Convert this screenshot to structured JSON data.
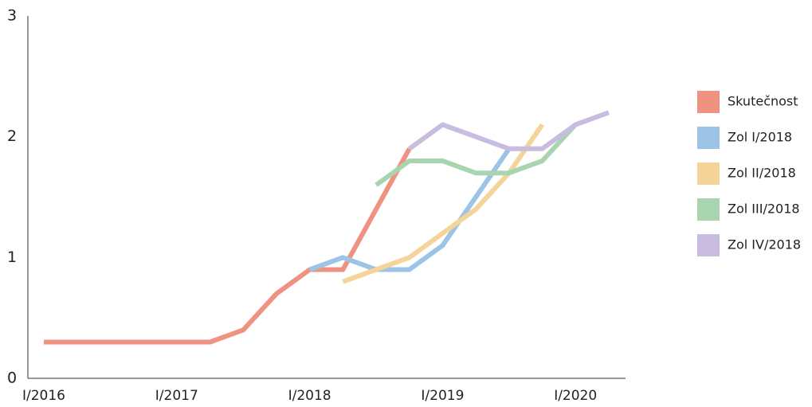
{
  "chart_data": {
    "type": "line",
    "categories": [
      "I/2016",
      null,
      null,
      null,
      "I/2017",
      null,
      null,
      null,
      "I/2018",
      null,
      null,
      null,
      "I/2019",
      null,
      null,
      null,
      "I/2020",
      null
    ],
    "series": [
      {
        "name": "Skutečnost",
        "color": "#f09282",
        "values": [
          0.3,
          0.3,
          0.3,
          0.3,
          0.3,
          0.3,
          0.4,
          0.7,
          0.9,
          0.9,
          1.4,
          1.9,
          null,
          null,
          null,
          null,
          null,
          null
        ]
      },
      {
        "name": "Zol I/2018",
        "color": "#9dc3e6",
        "values": [
          null,
          null,
          null,
          null,
          null,
          null,
          null,
          null,
          0.9,
          1.0,
          0.9,
          0.9,
          1.1,
          1.5,
          1.9,
          null,
          null,
          null
        ]
      },
      {
        "name": "Zol II/2018",
        "color": "#f5d49a",
        "values": [
          null,
          null,
          null,
          null,
          null,
          null,
          null,
          null,
          null,
          0.8,
          0.9,
          1.0,
          1.2,
          1.4,
          1.7,
          2.1,
          null,
          null
        ]
      },
      {
        "name": "Zol III/2018",
        "color": "#a8d5b0",
        "values": [
          null,
          null,
          null,
          null,
          null,
          null,
          null,
          null,
          null,
          null,
          1.6,
          1.8,
          1.8,
          1.7,
          1.7,
          1.8,
          2.1,
          null
        ]
      },
      {
        "name": "Zol IV/2018",
        "color": "#c8bde0",
        "values": [
          null,
          null,
          null,
          null,
          null,
          null,
          null,
          null,
          null,
          null,
          null,
          1.9,
          2.1,
          2.0,
          1.9,
          1.9,
          2.1,
          2.2
        ]
      }
    ],
    "ylim": [
      0,
      3
    ],
    "yticks": [
      0,
      1,
      2,
      3
    ],
    "grid": false,
    "legend": "right"
  }
}
